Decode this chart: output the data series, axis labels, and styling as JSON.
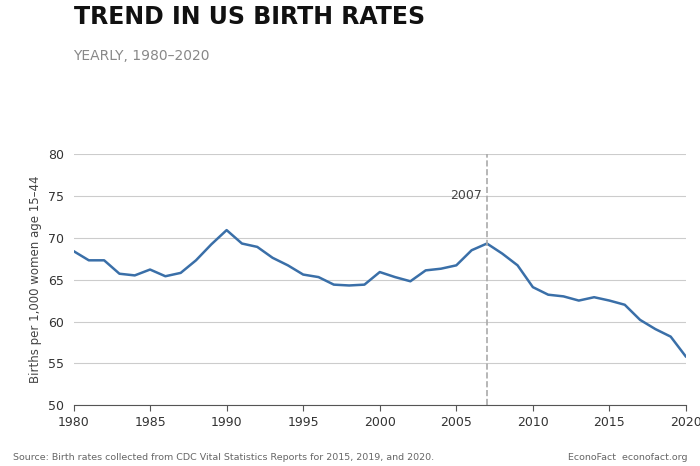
{
  "title": "TREND IN US BIRTH RATES",
  "subtitle": "YEARLY, 1980–2020",
  "ylabel": "Births per 1,000 women age 15–44",
  "source_left": "Source: Birth rates collected from CDC Vital Statistics Reports for 2015, 2019, and 2020.",
  "source_right": "EconoFact  econofact.org",
  "annotation_year": 2007,
  "annotation_text": "2007",
  "vline_year": 2007,
  "xlim": [
    1980,
    2020
  ],
  "ylim": [
    50,
    80
  ],
  "yticks": [
    50,
    55,
    60,
    65,
    70,
    75,
    80
  ],
  "xticks": [
    1980,
    1985,
    1990,
    1995,
    2000,
    2005,
    2010,
    2015,
    2020
  ],
  "line_color": "#3a6fa8",
  "line_width": 1.8,
  "background_color": "#ffffff",
  "grid_color": "#cccccc",
  "title_fontsize": 17,
  "subtitle_fontsize": 10,
  "years": [
    1980,
    1981,
    1982,
    1983,
    1984,
    1985,
    1986,
    1987,
    1988,
    1989,
    1990,
    1991,
    1992,
    1993,
    1994,
    1995,
    1996,
    1997,
    1998,
    1999,
    2000,
    2001,
    2002,
    2003,
    2004,
    2005,
    2006,
    2007,
    2008,
    2009,
    2010,
    2011,
    2012,
    2013,
    2014,
    2015,
    2016,
    2017,
    2018,
    2019,
    2020
  ],
  "values": [
    68.4,
    67.3,
    67.3,
    65.7,
    65.5,
    66.2,
    65.4,
    65.8,
    67.3,
    69.2,
    70.9,
    69.3,
    68.9,
    67.6,
    66.7,
    65.6,
    65.3,
    64.4,
    64.3,
    64.4,
    65.9,
    65.3,
    64.8,
    66.1,
    66.3,
    66.7,
    68.5,
    69.3,
    68.1,
    66.7,
    64.1,
    63.2,
    63.0,
    62.5,
    62.9,
    62.5,
    62.0,
    60.2,
    59.1,
    58.2,
    55.8
  ]
}
